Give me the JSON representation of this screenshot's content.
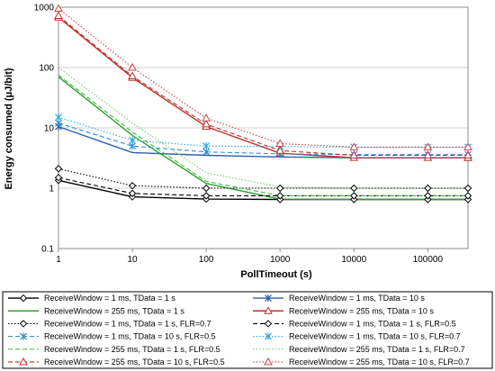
{
  "chart_data": {
    "type": "line",
    "xlabel": "PollTimeout (s)",
    "ylabel": "Energy consumed (μJ/bit)",
    "x_scale": "log",
    "y_scale": "log",
    "xlim": [
      1,
      350000
    ],
    "ylim": [
      0.1,
      1000
    ],
    "x_ticks": [
      "1",
      "10",
      "100",
      "1000",
      "10000",
      "100000"
    ],
    "y_ticks": [
      "0.1",
      "1",
      "10",
      "100",
      "1000"
    ],
    "grid": "horizontal",
    "legend_placement": "bottom",
    "x": [
      1,
      10,
      100,
      1000,
      10000,
      100000,
      350000
    ],
    "series": [
      {
        "name": "ReceiveWindow = 1 ms, TData = 1 s",
        "color": "#000000",
        "dash": "solid",
        "marker": "diamond",
        "marker_x": [
          1,
          10,
          100,
          1000,
          10000,
          100000,
          350000
        ],
        "values": [
          1.35,
          0.72,
          0.66,
          0.65,
          0.65,
          0.65,
          0.65
        ]
      },
      {
        "name": "ReceiveWindow = 1 ms, TData = 10 s",
        "color": "#2e5fa8",
        "dash": "solid",
        "marker": "star",
        "marker_x": [
          1,
          350000
        ],
        "values": [
          10.5,
          3.9,
          3.5,
          3.3,
          3.2,
          3.2,
          3.2
        ]
      },
      {
        "name": "ReceiveWindow = 255 ms, TData = 1 s",
        "color": "#2ea02e",
        "dash": "solid",
        "marker": "none",
        "marker_x": [],
        "values": [
          70,
          7.5,
          1.2,
          0.66,
          0.65,
          0.65,
          0.65
        ]
      },
      {
        "name": "ReceiveWindow = 255 ms, TData = 10 s",
        "color": "#c0302a",
        "dash": "solid",
        "marker": "triangle",
        "marker_x": [
          1,
          10,
          100,
          1000,
          10000,
          100000,
          350000
        ],
        "values": [
          680,
          68,
          10.5,
          3.8,
          3.2,
          3.2,
          3.2
        ]
      },
      {
        "name": "ReceiveWindow = 1 ms, TData = 1 s, FLR=0.7",
        "color": "#000000",
        "dash": "dotted",
        "marker": "diamond",
        "marker_x": [
          1,
          10,
          100,
          1000,
          10000,
          100000,
          350000
        ],
        "values": [
          2.1,
          1.1,
          1.0,
          1.0,
          1.0,
          1.0,
          1.0
        ]
      },
      {
        "name": "ReceiveWindow = 1 ms, TData = 1 s, FLR=0.5",
        "color": "#000000",
        "dash": "dashed",
        "marker": "diamond",
        "marker_x": [
          1,
          10,
          100,
          1000,
          10000,
          100000,
          350000
        ],
        "values": [
          1.5,
          0.82,
          0.75,
          0.75,
          0.75,
          0.75,
          0.75
        ]
      },
      {
        "name": "ReceiveWindow = 1 ms, TData = 10 s, FLR=0.5",
        "color": "#2e8fd0",
        "dash": "dashed",
        "marker": "star",
        "marker_x": [
          1,
          10,
          100,
          1000,
          10000,
          100000,
          350000
        ],
        "values": [
          12,
          5.0,
          4.0,
          3.7,
          3.6,
          3.6,
          3.6
        ]
      },
      {
        "name": "ReceiveWindow = 1 ms, TData = 10 s, FLR=0.7",
        "color": "#2ea8e0",
        "dash": "dotted",
        "marker": "star",
        "marker_x": [
          1,
          10,
          100,
          1000,
          10000,
          100000,
          350000
        ],
        "values": [
          15,
          6.2,
          5.0,
          4.9,
          4.8,
          4.8,
          4.8
        ]
      },
      {
        "name": "ReceiveWindow = 255 ms, TData = 1 s, FLR=0.5",
        "color": "#3cb83c",
        "dash": "dashed",
        "marker": "none",
        "marker_x": [],
        "values": [
          75,
          8.5,
          1.3,
          0.75,
          0.75,
          0.75,
          0.75
        ]
      },
      {
        "name": "ReceiveWindow = 255 ms, TData = 1 s, FLR=0.7",
        "color": "#70c870",
        "dash": "dotted",
        "marker": "none",
        "marker_x": [],
        "values": [
          100,
          12,
          1.8,
          1.05,
          1.0,
          1.0,
          1.0
        ]
      },
      {
        "name": "ReceiveWindow = 255 ms, TData = 10 s, FLR=0.5",
        "color": "#c0302a",
        "dash": "dashed",
        "marker": "triangle",
        "marker_x": [
          1,
          10,
          100,
          1000,
          10000,
          100000,
          350000
        ],
        "values": [
          720,
          72,
          11.5,
          4.2,
          3.5,
          3.5,
          3.5
        ]
      },
      {
        "name": "ReceiveWindow = 255 ms, TData = 10 s, FLR=0.7",
        "color": "#d04040",
        "dash": "dotted",
        "marker": "triangle",
        "marker_x": [
          1,
          10,
          100,
          1000,
          10000,
          100000,
          350000
        ],
        "values": [
          950,
          100,
          14.5,
          5.5,
          4.8,
          4.8,
          4.8
        ]
      }
    ]
  }
}
